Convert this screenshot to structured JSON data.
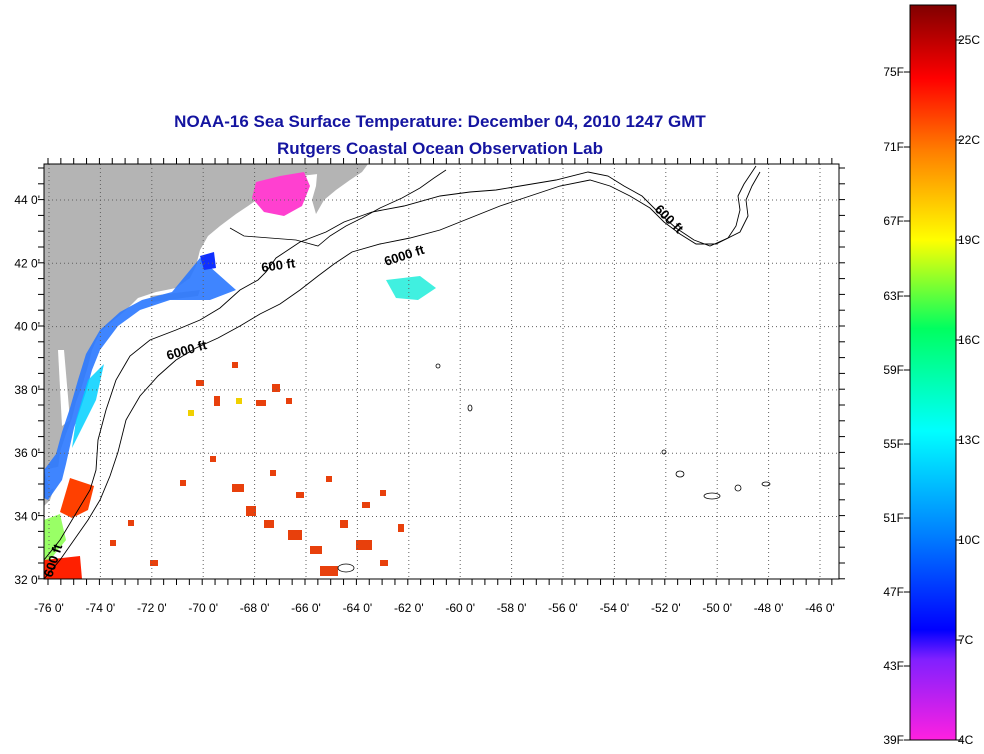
{
  "title": {
    "line1": "NOAA-16 Sea Surface Temperature:  December 04, 2010 1247 GMT",
    "line2": "Rutgers Coastal Ocean Observation Lab"
  },
  "map": {
    "lon_ticks": [
      "-76 0'",
      "-74 0'",
      "-72 0'",
      "-70 0'",
      "-68 0'",
      "-66 0'",
      "-64 0'",
      "-62 0'",
      "-60 0'",
      "-58 0'",
      "-56 0'",
      "-54 0'",
      "-52 0'",
      "-50 0'",
      "-48 0'",
      "-46 0'"
    ],
    "lat_ticks": [
      "44 0'",
      "42 0'",
      "40 0'",
      "38 0'",
      "36 0'",
      "34 0'",
      "32 0'"
    ],
    "contour_labels": [
      "600 ft",
      "6000 ft",
      "6000 ft",
      "600 ft",
      "600 ft"
    ],
    "land_color": "#b4b4b4"
  },
  "colorbar": {
    "fahrenheit_labels": [
      "75F",
      "71F",
      "67F",
      "63F",
      "59F",
      "55F",
      "51F",
      "47F",
      "43F",
      "39F"
    ],
    "celsius_labels": [
      "25C",
      "22C",
      "19C",
      "16C",
      "13C",
      "10C",
      "7C",
      "4C"
    ],
    "colors": [
      "#ff00ff",
      "#0000ff",
      "#00ffff",
      "#00ff00",
      "#ffff00",
      "#ff8000",
      "#ff0000",
      "#800000"
    ]
  }
}
